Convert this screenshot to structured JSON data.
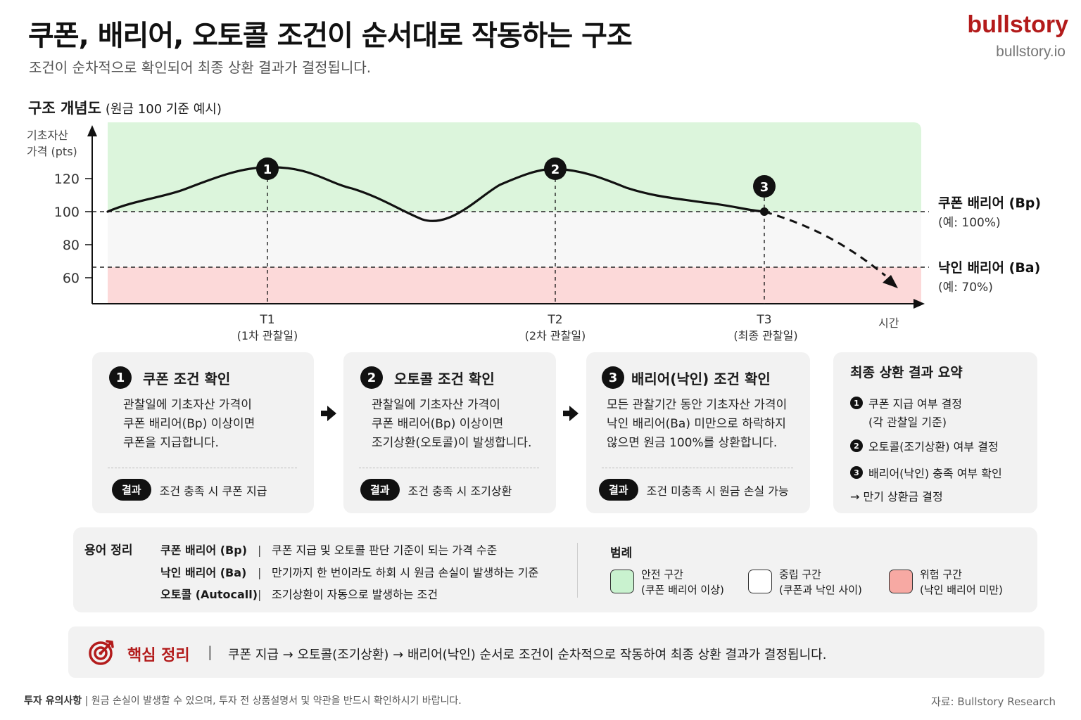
{
  "header": {
    "title": "쿠폰, 배리어, 오토콜 조건이 순서대로 작동하는 구조",
    "subtitle": "조건이 순차적으로 확인되어 최종 상환 결과가 결정됩니다.",
    "brand": "bullstory",
    "brand_url": "bullstory.io"
  },
  "chart": {
    "title": "구조 개념도",
    "note": "(원금 100 기준 예시)",
    "ylabel_line1": "기초자산",
    "ylabel_line2": "가격 (pts)",
    "xlabel": "시간",
    "y_ticks": [
      "120",
      "100",
      "80",
      "60"
    ],
    "coupon_barrier_label": "쿠폰 배리어 (Bp)",
    "coupon_barrier_example": "(예: 100%)",
    "ki_barrier_label": "낙인 배리어 (Ba)",
    "ki_barrier_example": "(예: 70%)",
    "markers": [
      {
        "num": "1",
        "label": "T1",
        "sub": "(1차 관찰일)"
      },
      {
        "num": "2",
        "label": "T2",
        "sub": "(2차 관찰일)"
      },
      {
        "num": "3",
        "label": "T3",
        "sub": "(최종 관찰일)"
      }
    ],
    "colors": {
      "safe": "#dcf5dc",
      "neutral": "#f7f7f7",
      "danger": "#fcd9d9"
    }
  },
  "steps": [
    {
      "num": "1",
      "title": "쿠폰 조건 확인",
      "body": [
        "관찰일에 기초자산 가격이",
        "쿠폰 배리어(Bp) 이상이면",
        "쿠폰을 지급합니다."
      ],
      "result_pill": "결과",
      "result": "조건 충족 시 쿠폰 지급"
    },
    {
      "num": "2",
      "title": "오토콜 조건 확인",
      "body": [
        "관찰일에 기초자산 가격이",
        "쿠폰 배리어(Bp) 이상이면",
        "조기상환(오토콜)이 발생합니다."
      ],
      "result_pill": "결과",
      "result": "조건 충족 시 조기상환"
    },
    {
      "num": "3",
      "title": "배리어(낙인) 조건 확인",
      "body": [
        "모든 관찰기간 동안 기초자산 가격이",
        "낙인 배리어(Ba) 미만으로 하락하지",
        "않으면 원금 100%를 상환합니다."
      ],
      "result_pill": "결과",
      "result": "조건 미충족 시 원금 손실 가능"
    }
  ],
  "summary": {
    "title": "최종 상환 결과 요약",
    "items": [
      {
        "num": "1",
        "text": "쿠폰 지급 여부 결정",
        "sub": "(각 관찰일 기준)"
      },
      {
        "num": "2",
        "text": "오토콜(조기상환) 여부 결정"
      },
      {
        "num": "3",
        "text": "배리어(낙인) 충족 여부 확인"
      }
    ],
    "final": "→ 만기 상환금 결정"
  },
  "glossary": {
    "title": "용어 정리",
    "rows": [
      {
        "term": "쿠폰 배리어 (Bp)",
        "sep": "|",
        "desc": "쿠폰 지급 및 오토콜 판단 기준이 되는 가격 수준"
      },
      {
        "term": "낙인 배리어 (Ba)",
        "sep": "|",
        "desc": "만기까지 한 번이라도 하회 시 원금 손실이 발생하는 기준"
      },
      {
        "term": "오토콜 (Autocall)",
        "sep": "|",
        "desc": "조기상환이 자동으로 발생하는 조건"
      }
    ]
  },
  "legend": {
    "title": "범례",
    "items": [
      {
        "label": "안전 구간",
        "sub": "(쿠폰 배리어 이상)",
        "color": "#c9f2cf"
      },
      {
        "label": "중립 구간",
        "sub": "(쿠폰과 낙인 사이)",
        "color": "#ffffff"
      },
      {
        "label": "위험 구간",
        "sub": "(낙인 배리어 미만)",
        "color": "#f7a9a3"
      }
    ]
  },
  "key_point": {
    "title": "핵심 정리",
    "sep": "|",
    "text": "쿠폰 지급 → 오토콜(조기상환) → 배리어(낙인) 순서로 조건이 순차적으로 작동하여 최종 상환 결과가 결정됩니다."
  },
  "footer": {
    "note_label": "투자 유의사항",
    "note": "| 원금 손실이 발생할 수 있으며, 투자 전 상품설명서 및 약관을 반드시 확인하시기 바랍니다.",
    "source": "자료: Bullstory Research"
  }
}
